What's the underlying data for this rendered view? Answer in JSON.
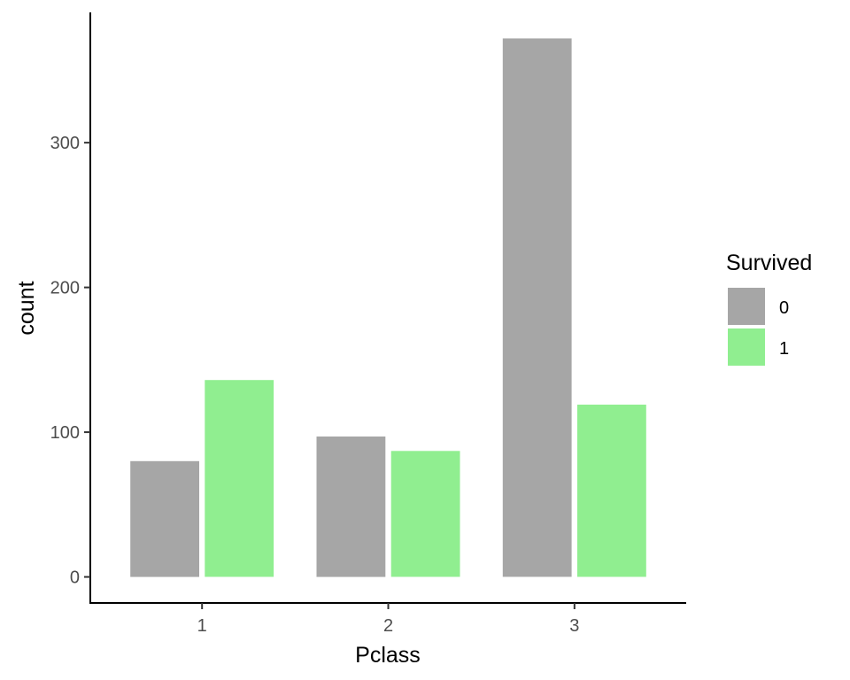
{
  "chart_data": {
    "type": "bar",
    "xlabel": "Pclass",
    "ylabel": "count",
    "categories": [
      "1",
      "2",
      "3"
    ],
    "series": [
      {
        "name": "0",
        "color": "#a6a6a6",
        "values": [
          80,
          97,
          372
        ]
      },
      {
        "name": "1",
        "color": "#90ee90",
        "values": [
          136,
          87,
          119
        ]
      }
    ],
    "yticks": [
      0,
      100,
      200,
      300
    ],
    "ylim": [
      -18,
      390
    ],
    "grid": false,
    "legend": {
      "title": "Survived",
      "placement": "right"
    }
  }
}
